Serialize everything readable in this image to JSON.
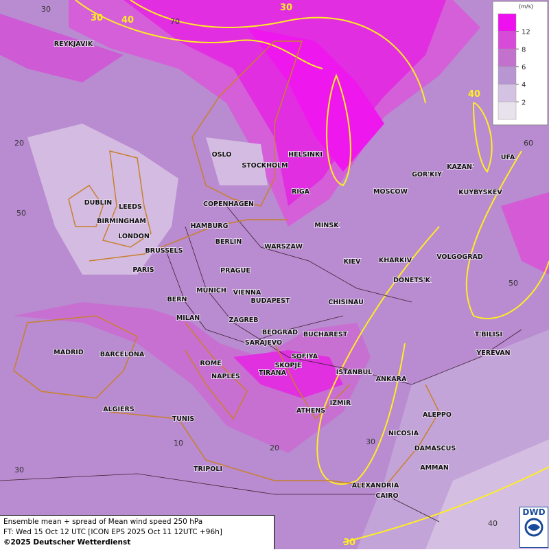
{
  "legend": {
    "unit": "(m/s)",
    "levels": [
      12,
      8,
      6,
      4,
      2
    ]
  },
  "cities": [
    "REYKJAVIK",
    "OSLO",
    "STOCKHOLM",
    "HELSINKI",
    "DUBLIN",
    "LEEDS",
    "BIRMINGHAM",
    "LONDON",
    "COPENHAGEN",
    "RIGA",
    "MOSCOW",
    "GOR'KIY",
    "KAZAN'",
    "UFA",
    "KUYBYSKEV",
    "HAMBURG",
    "BERLIN",
    "MINSK",
    "WARSZAW",
    "BRUSSELS",
    "PARIS",
    "KIEV",
    "KHARKIV",
    "VOLGOGRAD",
    "PRAGUE",
    "DONETS'K",
    "MUNICH",
    "VIENNA",
    "BERN",
    "BUDAPEST",
    "CHISINAU",
    "MILAN",
    "ZAGREB",
    "BEOGRAD",
    "BUCHAREST",
    "T'BILISI",
    "MADRID",
    "BARCELONA",
    "SARAJEVO",
    "SOFIYA",
    "YEREVAN",
    "ROME",
    "SKOPJE",
    "TIRANA",
    "ISTANBUL",
    "NAPLES",
    "ANKARA",
    "ALGIERS",
    "IZMIR",
    "ATHENS",
    "ALEPPO",
    "TUNIS",
    "NICOSIA",
    "DAMASCUS",
    "AMMAN",
    "TRIPOLI",
    "ALEXANDRIA",
    "CAIRO"
  ],
  "contour_labels": [
    "30",
    "40",
    "30",
    "40",
    "30"
  ],
  "graticule_labels": [
    "30",
    "70",
    "20",
    "60",
    "50",
    "50",
    "10",
    "20",
    "30",
    "30",
    "40"
  ],
  "footer": {
    "line1": "Ensemble mean + spread of Mean wind speed 250 hPa",
    "line2": "FT: Wed 15 Oct 12 UTC [ICON EPS 2025 Oct 11 12UTC +96h]",
    "line3": "©2025 Deutscher Wetterdienst"
  },
  "logo": "DWD"
}
